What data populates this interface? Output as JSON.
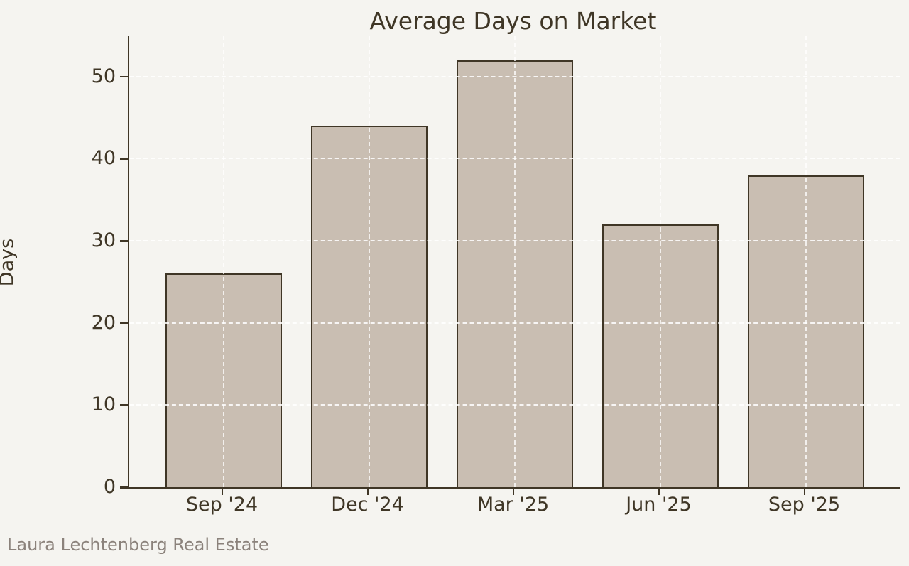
{
  "footer": "Laura Lechtenberg Real Estate",
  "chart_data": {
    "type": "bar",
    "categories": [
      "Sep '24",
      "Dec '24",
      "Mar '25",
      "Jun '25",
      "Sep '25"
    ],
    "values": [
      26,
      44,
      52,
      32,
      38
    ],
    "title": "Average Days on Market",
    "xlabel": "",
    "ylabel": "Days",
    "ylim": [
      0,
      55
    ],
    "yticks": [
      0,
      10,
      20,
      30,
      40,
      50
    ],
    "grid": "both, dashed, white, drawn over bars",
    "legend": "none",
    "colors": {
      "background": "#f5f4f0",
      "bar_fill": "#c9beb2",
      "bar_edge": "#3f3626",
      "axis_text": "#3f3626",
      "gridline": "#ffffff",
      "footer_text": "#8b827b"
    }
  }
}
